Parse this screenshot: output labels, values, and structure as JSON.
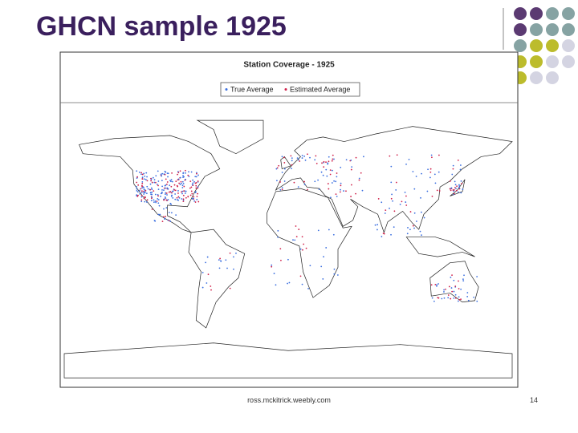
{
  "header": {
    "title": "GHCN sample 1925"
  },
  "figure": {
    "title": "Station Coverage - 1925",
    "legend": [
      "True Average",
      "Estimated Average"
    ]
  },
  "footer": {
    "source": "ross.mckitrick.weebly.com",
    "page": "14"
  }
}
